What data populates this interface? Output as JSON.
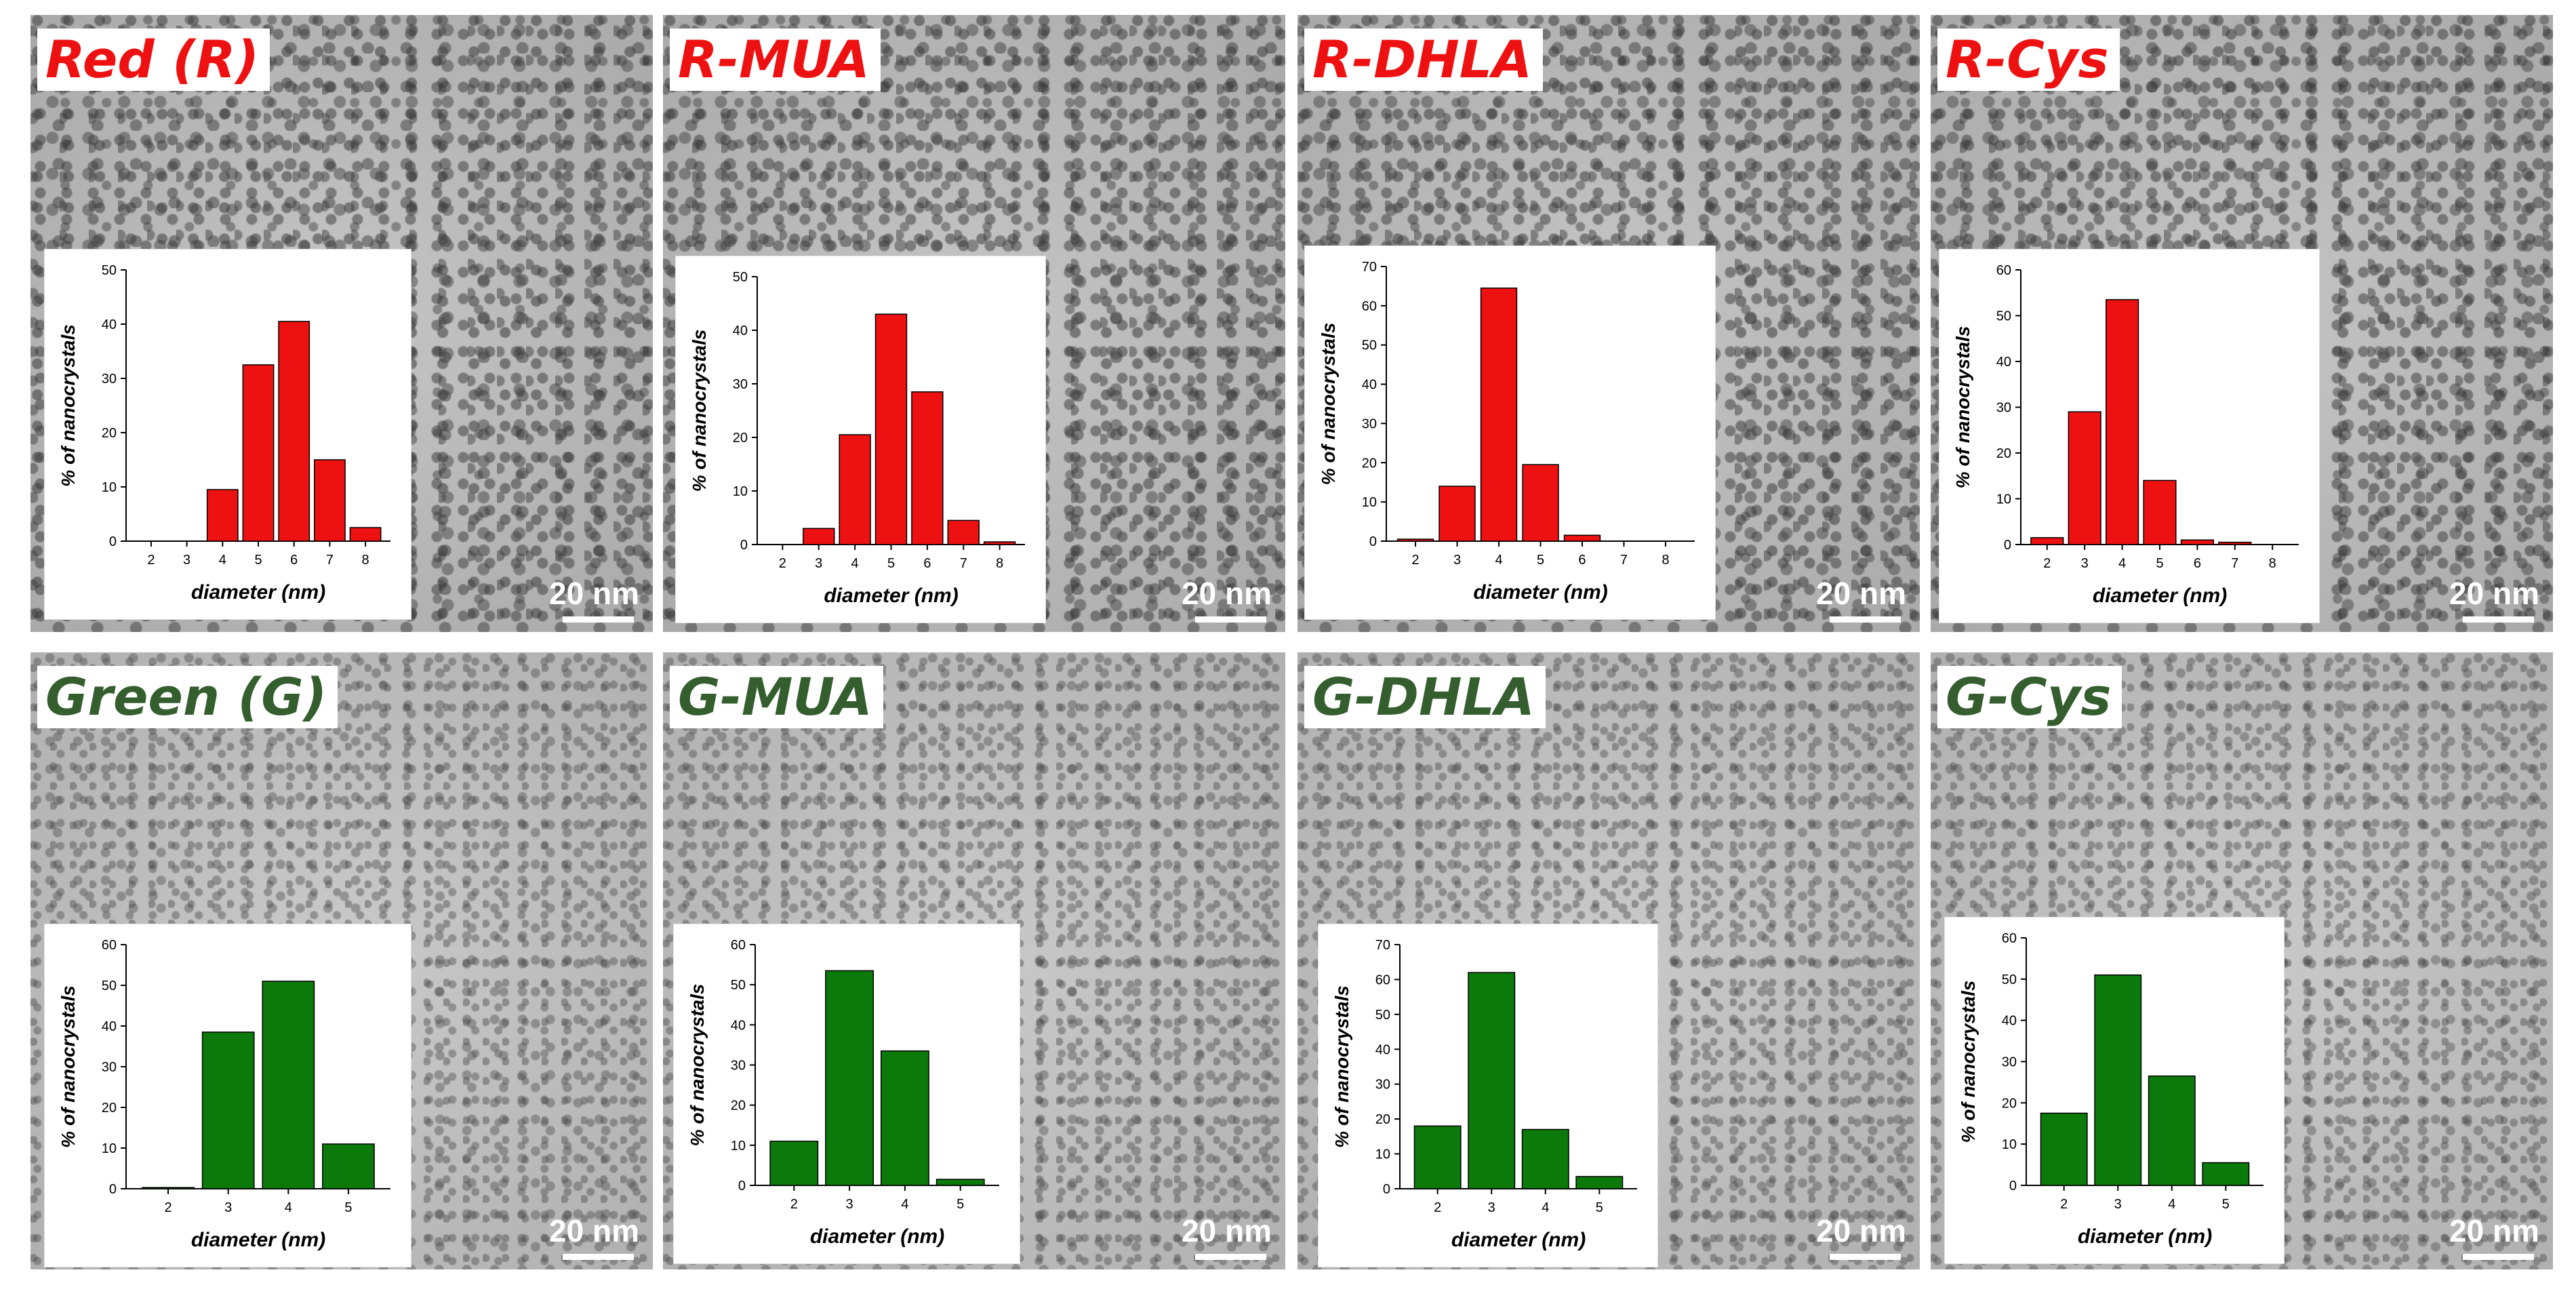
{
  "scale_bar_text": "20 nm",
  "colors": {
    "red_bar": "#ee1111",
    "green_bar": "#0b7a0b",
    "red_label": "#ee1111",
    "green_label": "#355e2f"
  },
  "panels": [
    {
      "label": "Red (R)",
      "tone": "red"
    },
    {
      "label": "R-MUA",
      "tone": "red"
    },
    {
      "label": "R-DHLA",
      "tone": "red"
    },
    {
      "label": "R-Cys",
      "tone": "red"
    },
    {
      "label": "Green (G)",
      "tone": "green"
    },
    {
      "label": "G-MUA",
      "tone": "green"
    },
    {
      "label": "G-DHLA",
      "tone": "green"
    },
    {
      "label": "G-Cys",
      "tone": "green"
    }
  ],
  "chart_data": [
    {
      "type": "bar",
      "xlabel": "diameter (nm)",
      "ylabel": "% of nanocrystals",
      "categories": [
        "2",
        "3",
        "4",
        "5",
        "6",
        "7",
        "8"
      ],
      "values": [
        0,
        0,
        9.5,
        32.5,
        40.5,
        15,
        2.5
      ],
      "ylim": [
        0,
        50
      ],
      "yticks": [
        0,
        10,
        20,
        30,
        40,
        50
      ]
    },
    {
      "type": "bar",
      "xlabel": "diameter (nm)",
      "ylabel": "% of nanocrystals",
      "categories": [
        "2",
        "3",
        "4",
        "5",
        "6",
        "7",
        "8"
      ],
      "values": [
        0,
        3,
        20.5,
        43,
        28.5,
        4.5,
        0.5
      ],
      "ylim": [
        0,
        50
      ],
      "yticks": [
        0,
        10,
        20,
        30,
        40,
        50
      ]
    },
    {
      "type": "bar",
      "xlabel": "diameter (nm)",
      "ylabel": "% of nanocrystals",
      "categories": [
        "2",
        "3",
        "4",
        "5",
        "6",
        "7",
        "8"
      ],
      "values": [
        0.5,
        14,
        64.5,
        19.5,
        1.5,
        0,
        0
      ],
      "ylim": [
        0,
        70
      ],
      "yticks": [
        0,
        10,
        20,
        30,
        40,
        50,
        60,
        70
      ]
    },
    {
      "type": "bar",
      "xlabel": "diameter (nm)",
      "ylabel": "% of nanocrystals",
      "categories": [
        "2",
        "3",
        "4",
        "5",
        "6",
        "7",
        "8"
      ],
      "values": [
        1.5,
        29,
        53.5,
        14,
        1,
        0.5,
        0
      ],
      "ylim": [
        0,
        60
      ],
      "yticks": [
        0,
        10,
        20,
        30,
        40,
        50,
        60
      ]
    },
    {
      "type": "bar",
      "xlabel": "diameter (nm)",
      "ylabel": "% of nanocrystals",
      "categories": [
        "2",
        "3",
        "4",
        "5"
      ],
      "values": [
        0.3,
        38.5,
        51,
        11
      ],
      "ylim": [
        0,
        60
      ],
      "yticks": [
        0,
        10,
        20,
        30,
        40,
        50,
        60
      ]
    },
    {
      "type": "bar",
      "xlabel": "diameter (nm)",
      "ylabel": "% of nanocrystals",
      "categories": [
        "2",
        "3",
        "4",
        "5"
      ],
      "values": [
        11,
        53.5,
        33.5,
        1.5
      ],
      "ylim": [
        0,
        60
      ],
      "yticks": [
        0,
        10,
        20,
        30,
        40,
        50,
        60
      ]
    },
    {
      "type": "bar",
      "xlabel": "diameter (nm)",
      "ylabel": "% of nanocrystals",
      "categories": [
        "2",
        "3",
        "4",
        "5"
      ],
      "values": [
        18,
        62,
        17,
        3.5
      ],
      "ylim": [
        0,
        70
      ],
      "yticks": [
        0,
        10,
        20,
        30,
        40,
        50,
        60,
        70
      ]
    },
    {
      "type": "bar",
      "xlabel": "diameter (nm)",
      "ylabel": "% of nanocrystals",
      "categories": [
        "2",
        "3",
        "4",
        "5"
      ],
      "values": [
        17.5,
        51,
        26.5,
        5.5
      ],
      "ylim": [
        0,
        60
      ],
      "yticks": [
        0,
        10,
        20,
        30,
        40,
        50,
        60
      ]
    }
  ]
}
